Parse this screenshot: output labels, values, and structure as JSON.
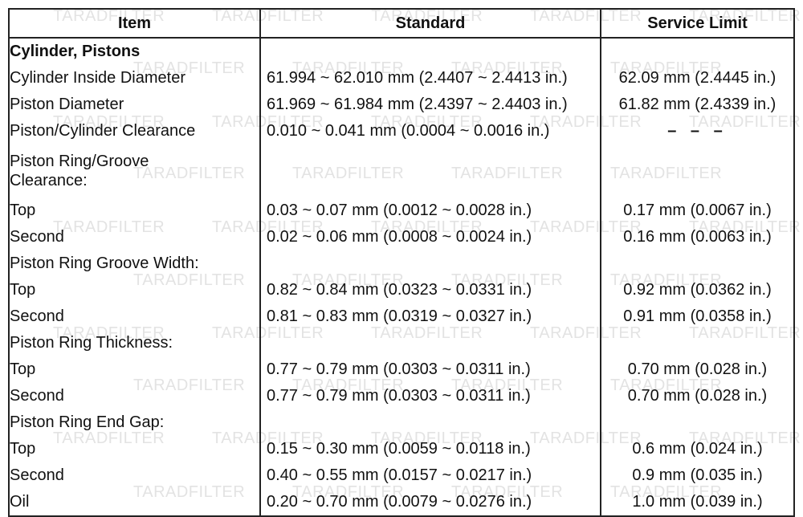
{
  "watermark": "TARADFILTER",
  "table": {
    "headers": [
      "Item",
      "Standard",
      "Service Limit"
    ],
    "rows": [
      {
        "item": "Cylinder, Pistons",
        "standard": "",
        "limit": ""
      },
      {
        "item": "Cylinder Inside Diameter",
        "standard": "61.994 ~ 62.010 mm (2.4407 ~ 2.4413 in.)",
        "limit": "62.09 mm (2.4445 in.)"
      },
      {
        "item": "Piston Diameter",
        "standard": "61.969 ~ 61.984 mm (2.4397 ~ 2.4403 in.)",
        "limit": "61.82 mm (2.4339 in.)"
      },
      {
        "item": "Piston/Cylinder Clearance",
        "standard": "0.010 ~ 0.041 mm (0.0004 ~ 0.0016 in.)",
        "limit": "– – –"
      },
      {
        "item": "Piston Ring/Groove\nClearance:",
        "standard": "",
        "limit": ""
      },
      {
        "item": "Top",
        "standard": "0.03 ~ 0.07 mm (0.0012 ~ 0.0028 in.)",
        "limit": "0.17 mm (0.0067 in.)"
      },
      {
        "item": "Second",
        "standard": "0.02 ~ 0.06 mm (0.0008 ~ 0.0024 in.)",
        "limit": "0.16 mm (0.0063 in.)"
      },
      {
        "item": "Piston Ring Groove Width:",
        "standard": "",
        "limit": ""
      },
      {
        "item": "Top",
        "standard": "0.82 ~ 0.84 mm (0.0323 ~ 0.0331 in.)",
        "limit": "0.92 mm (0.0362 in.)"
      },
      {
        "item": "Second",
        "standard": "0.81 ~ 0.83 mm (0.0319 ~ 0.0327 in.)",
        "limit": "0.91 mm (0.0358 in.)"
      },
      {
        "item": "Piston Ring Thickness:",
        "standard": "",
        "limit": ""
      },
      {
        "item": "Top",
        "standard": "0.77 ~ 0.79 mm (0.0303 ~ 0.0311 in.)",
        "limit": "0.70 mm (0.028 in.)"
      },
      {
        "item": "Second",
        "standard": "0.77 ~ 0.79 mm (0.0303 ~ 0.0311 in.)",
        "limit": "0.70 mm (0.028 in.)"
      },
      {
        "item": "Piston Ring End Gap:",
        "standard": "",
        "limit": ""
      },
      {
        "item": "Top",
        "standard": "0.15 ~ 0.30 mm (0.0059 ~ 0.0118 in.)",
        "limit": "0.6 mm (0.024 in.)"
      },
      {
        "item": "Second",
        "standard": "0.40 ~ 0.55 mm (0.0157 ~ 0.0217 in.)",
        "limit": "0.9 mm (0.035 in.)"
      },
      {
        "item": "Oil",
        "standard": "0.20 ~ 0.70 mm (0.0079 ~ 0.0276 in.)",
        "limit": "1.0 mm (0.039 in.)"
      }
    ]
  }
}
